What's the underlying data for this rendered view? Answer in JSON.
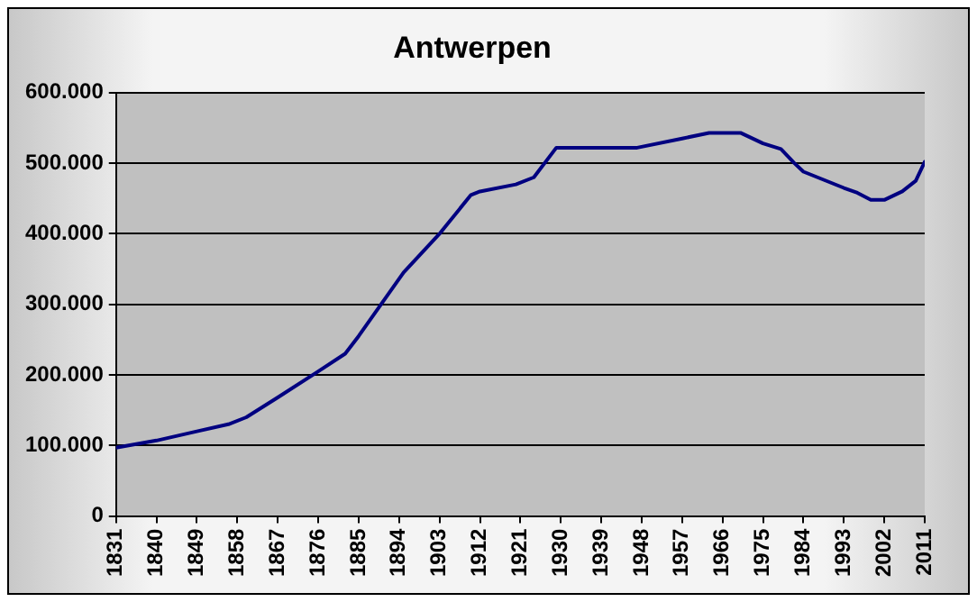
{
  "chart_data": {
    "type": "line",
    "title": "Antwerpen",
    "x": [
      1831,
      1840,
      1849,
      1856,
      1860,
      1867,
      1876,
      1882,
      1885,
      1890,
      1895,
      1903,
      1910,
      1912,
      1920,
      1924,
      1929,
      1947,
      1957,
      1963,
      1970,
      1975,
      1979,
      1982,
      1984,
      1993,
      1996,
      1999,
      2002,
      2006,
      2009,
      2011
    ],
    "series": [
      {
        "color": "#000080",
        "values": [
          97000,
          107000,
          120000,
          130000,
          140000,
          168000,
          205000,
          230000,
          255000,
          300000,
          345000,
          400000,
          455000,
          460000,
          470000,
          480000,
          522000,
          522000,
          535000,
          543000,
          543000,
          528000,
          520000,
          500000,
          488000,
          465000,
          458000,
          448000,
          448000,
          460000,
          475000,
          502000
        ]
      }
    ],
    "xlim": [
      1831,
      2011
    ],
    "xticks": [
      1831,
      1840,
      1849,
      1858,
      1867,
      1876,
      1885,
      1894,
      1903,
      1912,
      1921,
      1930,
      1939,
      1948,
      1957,
      1966,
      1975,
      1984,
      1993,
      2002,
      2011
    ],
    "ylim": [
      0,
      600000
    ],
    "yticks": [
      {
        "value": 0,
        "label": "0"
      },
      {
        "value": 100000,
        "label": "100.000"
      },
      {
        "value": 200000,
        "label": "200.000"
      },
      {
        "value": 300000,
        "label": "300.000"
      },
      {
        "value": 400000,
        "label": "400.000"
      },
      {
        "value": 500000,
        "label": "500.000"
      },
      {
        "value": 600000,
        "label": "600.000"
      }
    ],
    "grid": "y",
    "legend": false,
    "marker": "none",
    "line_style": "solid"
  }
}
